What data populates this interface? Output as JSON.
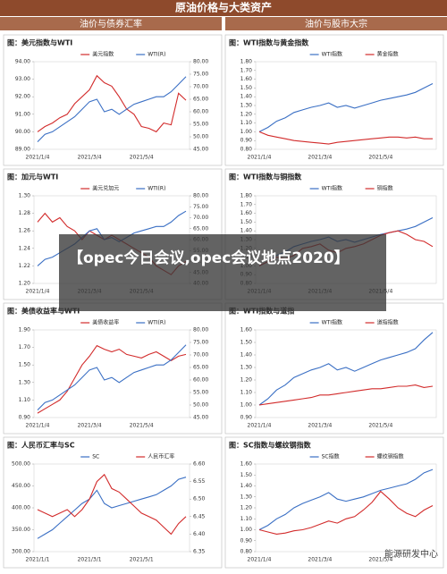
{
  "header": {
    "title": "原油价格与大类资产",
    "left": "油价与债券汇率",
    "right": "油价与股市大宗"
  },
  "overlay": "【opec今日会议,opec会议地点2020】",
  "watermark": "能源研发中心",
  "chart_data": [
    {
      "type": "line",
      "title": "图：美元指数与WTI",
      "categories": [
        "2021/1/4",
        null,
        null,
        null,
        null,
        null,
        null,
        "2021/3/4",
        null,
        null,
        null,
        null,
        null,
        null,
        "2021/5/4",
        null,
        null,
        null,
        null,
        null,
        null
      ],
      "series": [
        {
          "name": "美元指数",
          "color": "#d22b2b",
          "values": [
            90.0,
            90.3,
            90.5,
            90.8,
            91.0,
            91.6,
            92.0,
            92.4,
            93.2,
            92.8,
            92.6,
            92.0,
            91.3,
            91.0,
            90.3,
            90.2,
            90.0,
            90.5,
            90.4,
            92.2,
            91.8
          ]
        },
        {
          "name": "WTI(R)",
          "color": "#3a6fc4",
          "axis": "y2",
          "values": [
            48,
            51,
            52,
            54,
            56,
            58,
            61,
            64,
            65,
            60,
            61,
            59,
            61,
            63,
            64,
            65,
            66,
            66,
            68,
            71,
            74
          ]
        }
      ],
      "ylim": [
        89,
        94
      ],
      "yticks": [
        {
          "value": 89,
          "label": "89.00"
        },
        {
          "value": 90,
          "label": "90.00"
        },
        {
          "value": 91,
          "label": "91.00"
        },
        {
          "value": 92,
          "label": "92.00"
        },
        {
          "value": 93,
          "label": "93.00"
        },
        {
          "value": 94,
          "label": "94.00"
        }
      ],
      "y2lim": [
        45,
        80
      ],
      "y2ticks": [
        {
          "value": 45,
          "label": "45.00"
        },
        {
          "value": 50,
          "label": "50.00"
        },
        {
          "value": 55,
          "label": "55.00"
        },
        {
          "value": 60,
          "label": "60.00"
        },
        {
          "value": 65,
          "label": "65.00"
        },
        {
          "value": 70,
          "label": "70.00"
        },
        {
          "value": 75,
          "label": "75.00"
        },
        {
          "value": 80,
          "label": "80.00"
        }
      ]
    },
    {
      "type": "line",
      "title": "图：WTI指数与黄金指数",
      "categories": [
        "2021/1/4",
        null,
        null,
        null,
        null,
        null,
        null,
        "2021/3/4",
        null,
        null,
        null,
        null,
        null,
        null,
        "2021/5/4",
        null,
        null,
        null,
        null,
        null,
        null
      ],
      "series": [
        {
          "name": "WTI指数",
          "color": "#3a6fc4",
          "values": [
            1.0,
            1.05,
            1.12,
            1.16,
            1.22,
            1.25,
            1.28,
            1.3,
            1.33,
            1.28,
            1.3,
            1.27,
            1.3,
            1.33,
            1.36,
            1.38,
            1.4,
            1.42,
            1.45,
            1.5,
            1.55
          ]
        },
        {
          "name": "黄金指数",
          "color": "#d22b2b",
          "values": [
            1.0,
            0.96,
            0.94,
            0.92,
            0.9,
            0.89,
            0.88,
            0.87,
            0.86,
            0.88,
            0.89,
            0.9,
            0.91,
            0.92,
            0.93,
            0.94,
            0.94,
            0.93,
            0.94,
            0.92,
            0.92
          ]
        }
      ],
      "ylim": [
        0.8,
        1.8
      ],
      "yticks": [
        {
          "value": 0.8,
          "label": "0.80"
        },
        {
          "value": 0.9,
          "label": "0.90"
        },
        {
          "value": 1.0,
          "label": "1.00"
        },
        {
          "value": 1.1,
          "label": "1.10"
        },
        {
          "value": 1.2,
          "label": "1.20"
        },
        {
          "value": 1.3,
          "label": "1.30"
        },
        {
          "value": 1.4,
          "label": "1.40"
        },
        {
          "value": 1.5,
          "label": "1.50"
        },
        {
          "value": 1.6,
          "label": "1.60"
        },
        {
          "value": 1.7,
          "label": "1.70"
        },
        {
          "value": 1.8,
          "label": "1.80"
        }
      ]
    },
    {
      "type": "line",
      "title": "图：加元与WTI",
      "categories": [
        "2021/1/4",
        null,
        null,
        null,
        null,
        null,
        null,
        "2021/3/4",
        null,
        null,
        null,
        null,
        null,
        null,
        "2021/5/4",
        null,
        null,
        null,
        null,
        null,
        null
      ],
      "series": [
        {
          "name": "美元兑加元",
          "color": "#d22b2b",
          "values": [
            1.27,
            1.28,
            1.27,
            1.275,
            1.265,
            1.26,
            1.25,
            1.26,
            1.255,
            1.25,
            1.255,
            1.25,
            1.245,
            1.24,
            1.235,
            1.23,
            1.22,
            1.215,
            1.21,
            1.22,
            1.225
          ]
        },
        {
          "name": "WTI(R)",
          "color": "#3a6fc4",
          "axis": "y2",
          "values": [
            48,
            51,
            52,
            54,
            56,
            58,
            61,
            64,
            65,
            60,
            61,
            59,
            61,
            63,
            64,
            65,
            66,
            66,
            68,
            71,
            73
          ]
        }
      ],
      "ylim": [
        1.2,
        1.3
      ],
      "yticks": [
        {
          "value": 1.2,
          "label": "1.20"
        },
        {
          "value": 1.22,
          "label": "1.22"
        },
        {
          "value": 1.24,
          "label": "1.24"
        },
        {
          "value": 1.26,
          "label": "1.26"
        },
        {
          "value": 1.28,
          "label": "1.28"
        },
        {
          "value": 1.3,
          "label": "1.30"
        }
      ],
      "y2lim": [
        40,
        80
      ],
      "y2ticks": [
        {
          "value": 40,
          "label": "40.00"
        },
        {
          "value": 45,
          "label": "45.00"
        },
        {
          "value": 50,
          "label": "50.00"
        },
        {
          "value": 55,
          "label": "55.00"
        },
        {
          "value": 60,
          "label": "60.00"
        },
        {
          "value": 65,
          "label": "65.00"
        },
        {
          "value": 70,
          "label": "70.00"
        },
        {
          "value": 75,
          "label": "75.00"
        },
        {
          "value": 80,
          "label": "80.00"
        }
      ]
    },
    {
      "type": "line",
      "title": "图：WTI指数与铜指数",
      "categories": [
        "2021/1/4",
        null,
        null,
        null,
        null,
        null,
        null,
        "2021/3/4",
        null,
        null,
        null,
        null,
        null,
        null,
        "2021/5/4",
        null,
        null,
        null,
        null,
        null,
        null
      ],
      "series": [
        {
          "name": "WTI指数",
          "color": "#3a6fc4",
          "values": [
            1.0,
            1.05,
            1.12,
            1.16,
            1.22,
            1.25,
            1.28,
            1.3,
            1.33,
            1.28,
            1.3,
            1.27,
            1.3,
            1.33,
            1.36,
            1.38,
            1.4,
            1.42,
            1.45,
            1.5,
            1.55
          ]
        },
        {
          "name": "铜指数",
          "color": "#d22b2b",
          "values": [
            1.0,
            1.05,
            1.1,
            1.08,
            1.12,
            1.2,
            1.22,
            1.25,
            1.18,
            1.15,
            1.2,
            1.22,
            1.25,
            1.3,
            1.35,
            1.38,
            1.4,
            1.36,
            1.3,
            1.28,
            1.22
          ]
        }
      ],
      "ylim": [
        0.8,
        1.8
      ],
      "yticks": [
        {
          "value": 0.8,
          "label": "0.80"
        },
        {
          "value": 0.9,
          "label": "0.90"
        },
        {
          "value": 1.0,
          "label": "1.00"
        },
        {
          "value": 1.1,
          "label": "1.10"
        },
        {
          "value": 1.2,
          "label": "1.20"
        },
        {
          "value": 1.3,
          "label": "1.30"
        },
        {
          "value": 1.4,
          "label": "1.40"
        },
        {
          "value": 1.5,
          "label": "1.50"
        },
        {
          "value": 1.6,
          "label": "1.60"
        },
        {
          "value": 1.7,
          "label": "1.70"
        },
        {
          "value": 1.8,
          "label": "1.80"
        }
      ]
    },
    {
      "type": "line",
      "title": "图：美债收益率与WTI",
      "categories": [
        "2021/1/4",
        null,
        null,
        null,
        null,
        null,
        null,
        "2021/3/4",
        null,
        null,
        null,
        null,
        null,
        null,
        "2021/5/4",
        null,
        null,
        null,
        null,
        null,
        null
      ],
      "series": [
        {
          "name": "美债收益率",
          "color": "#d22b2b",
          "values": [
            0.95,
            1.0,
            1.05,
            1.1,
            1.2,
            1.35,
            1.5,
            1.6,
            1.72,
            1.68,
            1.65,
            1.68,
            1.62,
            1.6,
            1.58,
            1.62,
            1.65,
            1.6,
            1.55,
            1.6,
            1.62
          ]
        },
        {
          "name": "WTI(R)",
          "color": "#3a6fc4",
          "axis": "y2",
          "values": [
            48,
            51,
            52,
            54,
            56,
            58,
            61,
            64,
            65,
            60,
            61,
            59,
            61,
            63,
            64,
            65,
            66,
            66,
            68,
            71,
            74
          ]
        }
      ],
      "ylim": [
        0.9,
        1.9
      ],
      "yticks": [
        {
          "value": 0.9,
          "label": "0.90"
        },
        {
          "value": 1.1,
          "label": "1.10"
        },
        {
          "value": 1.3,
          "label": "1.30"
        },
        {
          "value": 1.5,
          "label": "1.50"
        },
        {
          "value": 1.7,
          "label": "1.70"
        },
        {
          "value": 1.9,
          "label": "1.90"
        }
      ],
      "y2lim": [
        45,
        80
      ],
      "y2ticks": [
        {
          "value": 45,
          "label": "45.00"
        },
        {
          "value": 50,
          "label": "50.00"
        },
        {
          "value": 55,
          "label": "55.00"
        },
        {
          "value": 60,
          "label": "60.00"
        },
        {
          "value": 65,
          "label": "65.00"
        },
        {
          "value": 70,
          "label": "70.00"
        },
        {
          "value": 75,
          "label": "75.00"
        },
        {
          "value": 80,
          "label": "80.00"
        }
      ]
    },
    {
      "type": "line",
      "title": "图：WTI指数与道指",
      "categories": [
        "2021/1/4",
        null,
        null,
        null,
        null,
        null,
        null,
        "2021/3/4",
        null,
        null,
        null,
        null,
        null,
        null,
        "2021/5/4",
        null,
        null,
        null,
        null,
        null,
        null
      ],
      "series": [
        {
          "name": "WTI指数",
          "color": "#3a6fc4",
          "values": [
            1.0,
            1.05,
            1.12,
            1.16,
            1.22,
            1.25,
            1.28,
            1.3,
            1.33,
            1.28,
            1.3,
            1.27,
            1.3,
            1.33,
            1.36,
            1.38,
            1.4,
            1.42,
            1.45,
            1.52,
            1.58
          ]
        },
        {
          "name": "道指指数",
          "color": "#d22b2b",
          "values": [
            1.0,
            1.01,
            1.02,
            1.03,
            1.04,
            1.05,
            1.06,
            1.08,
            1.08,
            1.09,
            1.1,
            1.11,
            1.12,
            1.13,
            1.13,
            1.14,
            1.15,
            1.15,
            1.16,
            1.14,
            1.15
          ]
        }
      ],
      "ylim": [
        0.9,
        1.6
      ],
      "yticks": [
        {
          "value": 0.9,
          "label": "0.90"
        },
        {
          "value": 1.0,
          "label": "1.00"
        },
        {
          "value": 1.1,
          "label": "1.10"
        },
        {
          "value": 1.2,
          "label": "1.20"
        },
        {
          "value": 1.3,
          "label": "1.30"
        },
        {
          "value": 1.4,
          "label": "1.40"
        },
        {
          "value": 1.5,
          "label": "1.50"
        },
        {
          "value": 1.6,
          "label": "1.60"
        }
      ]
    },
    {
      "type": "line",
      "title": "图：人民币汇率与SC",
      "categories": [
        "2021/1/1",
        null,
        null,
        null,
        null,
        null,
        null,
        "2021/3/1",
        null,
        null,
        null,
        null,
        null,
        null,
        "2021/5/1",
        null,
        null,
        null,
        null,
        null,
        null
      ],
      "series": [
        {
          "name": "SC",
          "color": "#3a6fc4",
          "values": [
            330,
            340,
            350,
            365,
            380,
            395,
            410,
            420,
            440,
            410,
            400,
            405,
            410,
            415,
            420,
            425,
            430,
            440,
            450,
            465,
            470
          ]
        },
        {
          "name": "人民币汇率",
          "color": "#d22b2b",
          "axis": "y2",
          "values": [
            6.47,
            6.46,
            6.45,
            6.46,
            6.47,
            6.45,
            6.47,
            6.5,
            6.55,
            6.57,
            6.53,
            6.52,
            6.5,
            6.48,
            6.46,
            6.45,
            6.44,
            6.42,
            6.4,
            6.43,
            6.45
          ]
        }
      ],
      "ylim": [
        300,
        500
      ],
      "yticks": [
        {
          "value": 300,
          "label": "300.00"
        },
        {
          "value": 350,
          "label": "350.00"
        },
        {
          "value": 400,
          "label": "400.00"
        },
        {
          "value": 450,
          "label": "450.00"
        },
        {
          "value": 500,
          "label": "500.00"
        }
      ],
      "y2lim": [
        6.35,
        6.6
      ],
      "y2ticks": [
        {
          "value": 6.35,
          "label": "6.35"
        },
        {
          "value": 6.4,
          "label": "6.40"
        },
        {
          "value": 6.45,
          "label": "6.45"
        },
        {
          "value": 6.5,
          "label": "6.50"
        },
        {
          "value": 6.55,
          "label": "6.55"
        },
        {
          "value": 6.6,
          "label": "6.60"
        }
      ]
    },
    {
      "type": "line",
      "title": "图：SC指数与螺纹钢指数",
      "categories": [
        "2021/1/4",
        null,
        null,
        null,
        null,
        null,
        null,
        "2021/3/4",
        null,
        null,
        null,
        null,
        null,
        null,
        "2021/5/4",
        null,
        null,
        null,
        null,
        null,
        null
      ],
      "series": [
        {
          "name": "SC指数",
          "color": "#3a6fc4",
          "values": [
            1.0,
            1.04,
            1.1,
            1.14,
            1.2,
            1.24,
            1.27,
            1.3,
            1.34,
            1.28,
            1.26,
            1.28,
            1.3,
            1.33,
            1.36,
            1.38,
            1.4,
            1.42,
            1.46,
            1.52,
            1.55
          ]
        },
        {
          "name": "螺纹钢指数",
          "color": "#d22b2b",
          "values": [
            1.0,
            0.98,
            0.96,
            0.97,
            0.99,
            1.0,
            1.02,
            1.05,
            1.08,
            1.06,
            1.1,
            1.12,
            1.18,
            1.25,
            1.35,
            1.28,
            1.2,
            1.15,
            1.12,
            1.18,
            1.22
          ]
        }
      ],
      "ylim": [
        0.8,
        1.6
      ],
      "yticks": [
        {
          "value": 0.8,
          "label": "0.80"
        },
        {
          "value": 0.9,
          "label": "0.90"
        },
        {
          "value": 1.0,
          "label": "1.00"
        },
        {
          "value": 1.1,
          "label": "1.10"
        },
        {
          "value": 1.2,
          "label": "1.20"
        },
        {
          "value": 1.3,
          "label": "1.30"
        },
        {
          "value": 1.4,
          "label": "1.40"
        },
        {
          "value": 1.5,
          "label": "1.50"
        },
        {
          "value": 1.6,
          "label": "1.60"
        }
      ]
    }
  ]
}
